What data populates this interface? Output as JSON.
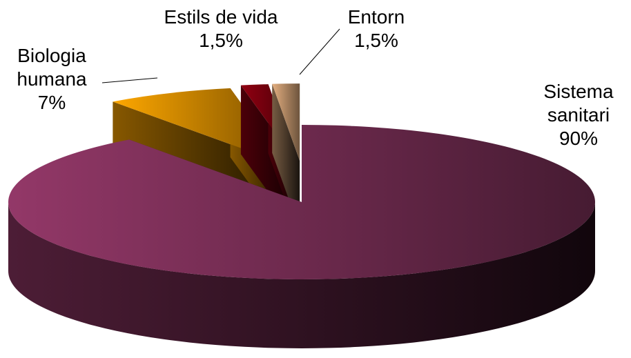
{
  "chart_data": {
    "type": "pie3d",
    "categories": [
      "Biologia humana",
      "Estils de vida",
      "Entorn",
      "Sistema sanitari"
    ],
    "values": [
      7,
      1.5,
      1.5,
      90
    ],
    "value_labels": [
      "7%",
      "1,5%",
      "1,5%",
      "90%"
    ],
    "colors": [
      "#f5a000",
      "#8b0010",
      "#d9a77a",
      "#8c3563"
    ]
  }
}
